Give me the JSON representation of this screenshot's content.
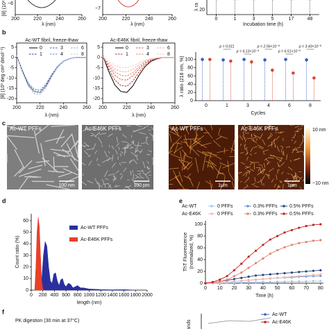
{
  "panel_a": {
    "ylabel_fragment": "[θ] (10³",
    "ylabel_fragment_right": "λ ra",
    "plots": [
      {
        "ytick": "−6",
        "xticks": [
          "200",
          "220",
          "240",
          "260"
        ],
        "xlabel": "λ (nm)"
      },
      {
        "ytick": "−7",
        "xticks": [
          "200",
          "220",
          "240",
          "260"
        ],
        "xlabel": "λ (nm)"
      },
      {
        "ytick": "20",
        "xticks": [
          "0",
          "1",
          "3",
          "5",
          "17",
          "48"
        ],
        "xlabel": "Incubation time (h)"
      }
    ]
  },
  "panel_letters": [
    "b",
    "c",
    "d",
    "e",
    "f"
  ],
  "chart_data": [
    {
      "type": "line",
      "title": "Ac-WT fibril, freeze-thaw",
      "x": [
        200,
        205,
        210,
        215,
        220,
        225,
        230,
        235,
        240,
        245,
        250,
        255,
        260
      ],
      "series": [
        {
          "name": "0",
          "color": "#000000",
          "dashed": false,
          "values": [
            0.9,
            -6.8,
            -13.3,
            -16.5,
            -17,
            -13.9,
            -8.8,
            -4.6,
            -1.9,
            -0.7,
            0,
            0,
            0
          ]
        },
        {
          "name": "1",
          "color": "#1f3f9a",
          "dashed": true,
          "values": [
            0.9,
            -7.2,
            -14,
            -17.5,
            -18,
            -14.8,
            -9.4,
            -4.9,
            -2,
            -0.7,
            0,
            0,
            0
          ]
        },
        {
          "name": "3",
          "color": "#3b5fc0",
          "dashed": true,
          "values": [
            0.8,
            -6.4,
            -12.5,
            -15.5,
            -16,
            -13.1,
            -8.3,
            -4.3,
            -1.8,
            -0.6,
            0,
            0,
            0
          ]
        },
        {
          "name": "4",
          "color": "#6a86d0",
          "dashed": true,
          "values": [
            0.8,
            -6.4,
            -12.5,
            -15.5,
            -16,
            -13.1,
            -8.3,
            -4.3,
            -1.8,
            -0.6,
            0,
            0,
            0
          ]
        },
        {
          "name": "6",
          "color": "#93a9de",
          "dashed": true,
          "values": [
            0.9,
            -6.8,
            -13.3,
            -16.5,
            -17,
            -13.9,
            -8.8,
            -4.6,
            -1.9,
            -0.7,
            0,
            0,
            0
          ]
        },
        {
          "name": "8",
          "color": "#bccbeb",
          "dashed": true,
          "values": [
            0.9,
            -7.2,
            -14,
            -17.5,
            -18,
            -14.8,
            -9.4,
            -4.9,
            -2,
            -0.7,
            0,
            0,
            0
          ]
        }
      ],
      "xlim": [
        200,
        260
      ],
      "xticks": [
        200,
        220,
        240,
        260
      ],
      "ylim": [
        -22,
        7
      ],
      "yticks": [
        5,
        0,
        -5,
        -10,
        -15,
        -20
      ],
      "xlabel": "λ (nm)",
      "ylabel": "[θ] (10³ deg cm² dmol⁻¹)"
    },
    {
      "type": "line",
      "title": "Ac-E46K fibril, freeze-thaw",
      "x": [
        200,
        205,
        210,
        215,
        220,
        225,
        230,
        235,
        240,
        245,
        250,
        255,
        260
      ],
      "series": [
        {
          "name": "0",
          "color": "#000000",
          "dashed": false,
          "values": [
            0.9,
            -6.8,
            -13.3,
            -16.5,
            -17,
            -13.9,
            -8.8,
            -4.6,
            -1.9,
            -0.7,
            0,
            0,
            0
          ]
        },
        {
          "name": "1",
          "color": "#b0302a",
          "dashed": true,
          "values": [
            0.7,
            -5.6,
            -10.9,
            -13.6,
            -14,
            -11.5,
            -7.3,
            -3.8,
            -1.5,
            -0.6,
            0,
            0,
            0
          ]
        },
        {
          "name": "3",
          "color": "#d05a4a",
          "dashed": true,
          "values": [
            0.6,
            -4.4,
            -8.6,
            -10.7,
            -11,
            -9,
            -5.7,
            -3,
            -1.2,
            -0.4,
            0,
            0,
            0
          ]
        },
        {
          "name": "4",
          "color": "#e08070",
          "dashed": true,
          "values": [
            0.5,
            -3.6,
            -7,
            -8.7,
            -9,
            -7.4,
            -4.7,
            -2.4,
            -1,
            -0.4,
            0,
            0,
            0
          ]
        },
        {
          "name": "6",
          "color": "#eba59a",
          "dashed": true,
          "values": [
            0.4,
            -2.8,
            -5.5,
            -6.8,
            -7,
            -5.7,
            -3.6,
            -1.9,
            -0.8,
            -0.3,
            0,
            0,
            0
          ]
        },
        {
          "name": "8",
          "color": "#f3c8c0",
          "dashed": true,
          "values": [
            0.3,
            -2,
            -3.9,
            -4.9,
            -5,
            -4.1,
            -2.6,
            -1.4,
            -0.6,
            -0.2,
            0,
            0,
            0
          ]
        }
      ],
      "xlim": [
        200,
        260
      ],
      "xticks": [
        200,
        220,
        240,
        260
      ],
      "ylim": [
        -22,
        7
      ],
      "yticks": [
        5,
        0,
        -5,
        -10,
        -15,
        -20
      ],
      "xlabel": "λ (nm)"
    },
    {
      "type": "dot",
      "categories": [
        "0",
        "1",
        "3",
        "4",
        "6",
        "8"
      ],
      "series": [
        {
          "color": "#3b5fc0",
          "values": [
            100,
            99,
            100,
            99,
            100,
            99
          ]
        },
        {
          "color": "#d9453a",
          "values": [
            100,
            96,
            94,
            74,
            67,
            55
          ]
        }
      ],
      "ylim": [
        0,
        118
      ],
      "yticks": [
        0,
        20,
        40,
        60,
        80,
        100
      ],
      "xlabel": "Cycles",
      "ylabel": "λ ratio (218 nm, %)",
      "annotations": [
        {
          "text": "p = 0.011",
          "category": "1"
        },
        {
          "text": "p = 6.13×10⁻⁴",
          "category": "3"
        },
        {
          "text": "p = 2.56×10⁻⁶",
          "category": "4"
        },
        {
          "text": "p = 6.51×10⁻⁵",
          "category": "6"
        },
        {
          "text": "p = 3.43×10⁻⁶",
          "category": "8"
        }
      ]
    },
    {
      "type": "area",
      "series": [
        {
          "name": "Ac-WT PFFs",
          "color": "#2b2f9e",
          "x": [
            150,
            180,
            210,
            240,
            270,
            300,
            330,
            360,
            390,
            420,
            450,
            480,
            510,
            540,
            570,
            600,
            640,
            680,
            720,
            760,
            800,
            850,
            900,
            950,
            1000,
            1100,
            1200,
            1400,
            1600,
            1800
          ],
          "values": [
            0,
            8,
            30,
            42,
            38,
            20,
            8,
            6,
            14,
            15,
            8,
            4,
            9,
            10,
            5,
            3,
            6,
            5,
            2,
            3,
            4,
            2,
            2,
            1.5,
            1,
            0.8,
            0.5,
            0.3,
            0.5,
            0
          ]
        },
        {
          "name": "Ac-E46K PFFs",
          "color": "#e8402a",
          "x": [
            60,
            80,
            100,
            120,
            140,
            160,
            180,
            200,
            220
          ],
          "values": [
            0,
            20,
            50,
            63,
            55,
            30,
            8,
            1,
            0
          ]
        }
      ],
      "xlim": [
        0,
        2000
      ],
      "xticks": [
        0,
        200,
        400,
        600,
        800,
        1000,
        1200,
        1400,
        1600,
        1800,
        2000
      ],
      "ylim": [
        0,
        66
      ],
      "yticks": [
        0,
        10,
        20,
        30,
        40,
        50,
        60
      ],
      "xlabel": "length (nm)",
      "ylabel": "Count ratio (%)"
    },
    {
      "type": "line",
      "legend_rows": [
        "Ac-WT",
        "Ac-E46K"
      ],
      "x": [
        0,
        5,
        10,
        15,
        20,
        25,
        30,
        35,
        40,
        45,
        50,
        55,
        60,
        65,
        70,
        75,
        80
      ],
      "series": [
        {
          "name": "0 PFFs",
          "color": "#a9c6e8",
          "values": [
            0,
            0,
            0.5,
            0.5,
            1,
            1,
            1.5,
            1.5,
            2,
            2,
            2.5,
            2.5,
            3,
            3,
            3,
            3.5,
            3.5
          ]
        },
        {
          "name": "0.3% PFFs",
          "color": "#6b8fce",
          "values": [
            0,
            0.5,
            1,
            2,
            3,
            4,
            5,
            6,
            7,
            8,
            9,
            9.5,
            10,
            11,
            11.5,
            12,
            12.5
          ]
        },
        {
          "name": "0.5% PFFs",
          "color": "#24467f",
          "values": [
            0,
            1,
            3,
            5,
            7,
            9,
            11,
            13,
            14,
            15,
            16,
            17,
            18,
            19,
            20,
            21,
            22
          ]
        },
        {
          "name": "0 PFFs",
          "color": "#f4b8ad",
          "values": [
            0,
            0.5,
            1,
            2,
            3,
            4,
            5,
            6,
            7,
            8,
            9,
            10,
            11,
            12,
            13,
            14,
            15
          ]
        },
        {
          "name": "0.3% PFFs",
          "color": "#e3826f",
          "values": [
            0,
            1,
            3,
            6,
            12,
            18,
            26,
            34,
            42,
            50,
            56,
            61,
            65,
            68,
            70,
            72,
            73
          ]
        },
        {
          "name": "0.5% PFFs",
          "color": "#c0221b",
          "values": [
            0,
            2,
            6,
            12,
            22,
            33,
            45,
            55,
            65,
            74,
            80,
            86,
            90,
            94,
            97,
            99,
            100
          ]
        }
      ],
      "xlim": [
        0,
        82
      ],
      "xticks": [
        0,
        10,
        20,
        30,
        40,
        50,
        60,
        70,
        80
      ],
      "ylim": [
        0,
        106
      ],
      "yticks": [
        0,
        20,
        40,
        60,
        80,
        100
      ],
      "xlabel": "Time (h)",
      "ylabel": [
        "ThT Fluorescence",
        "(normalized, %)"
      ]
    }
  ],
  "panel_c": {
    "images": [
      {
        "label": "Ac-WT PFFs",
        "scale": "100 nm"
      },
      {
        "label": "Ac-E46K PFFs",
        "scale": "100 nm"
      },
      {
        "label": "Ac-WT PFFs",
        "scale": "1μm"
      },
      {
        "label": "Ac-E46K PFFs",
        "scale": "1μm"
      }
    ],
    "colorbar": [
      "10 nm",
      "−10 nm"
    ]
  },
  "panel_f": {
    "title": "PK digestion (30 min at 37°C)",
    "legend": [
      "Ac-WT",
      "Ac-E46K"
    ],
    "ylabel_fragment": "ands"
  }
}
